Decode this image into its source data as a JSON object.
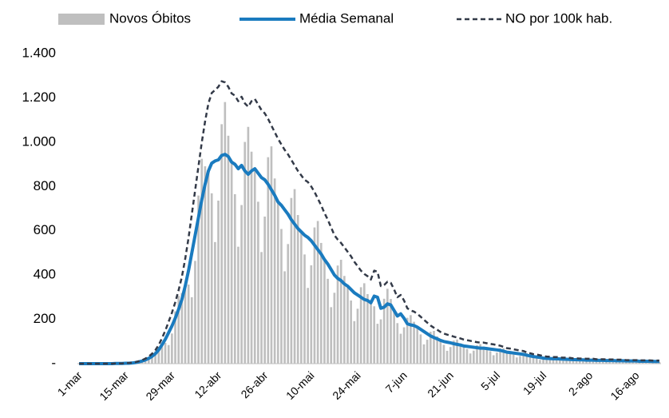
{
  "chart_data": {
    "type": "bar_line",
    "legend": "top",
    "categories": [
      "1-mar",
      null,
      null,
      null,
      null,
      null,
      null,
      null,
      null,
      null,
      null,
      null,
      null,
      null,
      "15-mar",
      null,
      null,
      null,
      null,
      null,
      null,
      null,
      null,
      null,
      null,
      null,
      null,
      null,
      "29-mar",
      null,
      null,
      null,
      null,
      null,
      null,
      null,
      null,
      null,
      null,
      null,
      null,
      null,
      "12-abr",
      null,
      null,
      null,
      null,
      null,
      null,
      null,
      null,
      null,
      null,
      null,
      null,
      null,
      "26-abr",
      null,
      null,
      null,
      null,
      null,
      null,
      null,
      null,
      null,
      null,
      null,
      null,
      null,
      "10-mai",
      null,
      null,
      null,
      null,
      null,
      null,
      null,
      null,
      null,
      null,
      null,
      null,
      null,
      "24-mai",
      null,
      null,
      null,
      null,
      null,
      null,
      null,
      null,
      null,
      null,
      null,
      null,
      null,
      "7-jun",
      null,
      null,
      null,
      null,
      null,
      null,
      null,
      null,
      null,
      null,
      null,
      null,
      null,
      "21-jun",
      null,
      null,
      null,
      null,
      null,
      null,
      null,
      null,
      null,
      null,
      null,
      null,
      null,
      "5-jul",
      null,
      null,
      null,
      null,
      null,
      null,
      null,
      null,
      null,
      null,
      null,
      null,
      null,
      "19-jul",
      null,
      null,
      null,
      null,
      null,
      null,
      null,
      null,
      null,
      null,
      null,
      null,
      null,
      "2-ago",
      null,
      null,
      null,
      null,
      null,
      null,
      null,
      null,
      null,
      null,
      null,
      null,
      null,
      "16-ago",
      null,
      null,
      null,
      null,
      null,
      null,
      null
    ],
    "series": [
      {
        "name": "Novos Óbitos",
        "kind": "bar",
        "color": "#bfbfbf",
        "values": [
          0,
          0,
          0,
          0,
          0,
          0,
          0,
          0,
          0,
          0,
          0,
          1,
          1,
          1,
          2,
          2,
          4,
          6,
          8,
          10,
          10,
          19,
          38,
          56,
          68,
          85,
          94,
          84,
          136,
          236,
          306,
          319,
          350,
          357,
          300,
          464,
          759,
          925,
          891,
          870,
          769,
          549,
          736,
          1081,
          1181,
          1029,
          910,
          765,
          528,
          716,
          1001,
          1069,
          957,
          880,
          731,
          504,
          664,
          932,
          981,
          836,
          730,
          608,
          417,
          540,
          748,
          788,
          671,
          595,
          493,
          342,
          444,
          615,
          644,
          545,
          470,
          383,
          255,
          320,
          443,
          469,
          396,
          350,
          285,
          192,
          248,
          345,
          363,
          314,
          275,
          259,
          180,
          200,
          293,
          338,
          292,
          240,
          183,
          135,
          164,
          207,
          219,
          189,
          165,
          132,
          87,
          108,
          144,
          148,
          123,
          105,
          85,
          58,
          75,
          104,
          109,
          92,
          80,
          66,
          46,
          59,
          83,
          88,
          77,
          68,
          56,
          38,
          50,
          69,
          70,
          57,
          50,
          41,
          28,
          35,
          48,
          48,
          39,
          32,
          26,
          17,
          20,
          28,
          29,
          24,
          22,
          18,
          12,
          16,
          22,
          23,
          20,
          17,
          14,
          10,
          13,
          18,
          19,
          17,
          15,
          12,
          8,
          11,
          15,
          16,
          14,
          13,
          10,
          7,
          10,
          13,
          14,
          12,
          11,
          9,
          6,
          8
        ]
      },
      {
        "name": "Média Semanal",
        "kind": "line",
        "color": "#1a7bbf",
        "values": [
          0,
          0,
          0,
          0,
          0,
          0,
          0,
          0,
          0,
          0,
          0,
          1,
          1,
          1,
          2,
          2,
          3,
          5,
          8,
          12,
          17,
          24,
          33,
          45,
          62,
          85,
          110,
          140,
          170,
          205,
          245,
          290,
          350,
          420,
          500,
          580,
          660,
          740,
          810,
          870,
          905,
          915,
          920,
          940,
          945,
          935,
          910,
          900,
          880,
          895,
          870,
          855,
          870,
          880,
          860,
          840,
          830,
          810,
          785,
          760,
          730,
          715,
          695,
          675,
          650,
          630,
          610,
          595,
          580,
          570,
          555,
          535,
          515,
          495,
          470,
          450,
          425,
          400,
          385,
          375,
          360,
          350,
          335,
          320,
          310,
          300,
          290,
          285,
          275,
          305,
          300,
          250,
          255,
          270,
          265,
          240,
          215,
          225,
          205,
          180,
          175,
          172,
          165,
          155,
          145,
          135,
          125,
          118,
          112,
          105,
          100,
          97,
          94,
          90,
          87,
          84,
          80,
          78,
          76,
          74,
          72,
          70,
          70,
          68,
          66,
          64,
          62,
          60,
          56,
          52,
          50,
          48,
          46,
          44,
          42,
          38,
          35,
          32,
          30,
          28,
          25,
          24,
          23,
          22,
          22,
          21,
          20,
          20,
          19,
          18,
          18,
          17,
          17,
          16,
          16,
          16,
          15,
          15,
          15,
          14,
          14,
          14,
          13,
          13,
          13,
          12,
          12,
          12,
          12,
          11,
          11,
          11,
          11,
          10,
          10,
          10
        ]
      },
      {
        "name": "NO por 100k hab.",
        "kind": "dashed",
        "color": "#333a48",
        "values": [
          0,
          0,
          0,
          0,
          0,
          0,
          0,
          0,
          0,
          0,
          0,
          1,
          1,
          1,
          3,
          3,
          4,
          7,
          11,
          16,
          23,
          32,
          45,
          61,
          84,
          115,
          149,
          189,
          230,
          277,
          331,
          392,
          473,
          567,
          675,
          783,
          891,
          999,
          1094,
          1175,
          1222,
          1235,
          1250,
          1275,
          1270,
          1250,
          1220,
          1210,
          1185,
          1205,
          1175,
          1160,
          1185,
          1195,
          1170,
          1145,
          1130,
          1105,
          1075,
          1045,
          1015,
          990,
          965,
          945,
          920,
          895,
          870,
          850,
          830,
          820,
          800,
          775,
          745,
          715,
          680,
          650,
          615,
          580,
          560,
          545,
          525,
          505,
          485,
          460,
          440,
          420,
          405,
          395,
          380,
          420,
          415,
          350,
          355,
          370,
          365,
          335,
          300,
          310,
          285,
          250,
          240,
          235,
          225,
          212,
          198,
          185,
          172,
          162,
          153,
          143,
          136,
          131,
          127,
          122,
          118,
          114,
          109,
          106,
          103,
          100,
          97,
          95,
          95,
          92,
          89,
          87,
          84,
          81,
          76,
          70,
          68,
          65,
          62,
          59,
          57,
          51,
          47,
          43,
          41,
          38,
          34,
          32,
          31,
          30,
          30,
          28,
          27,
          27,
          26,
          24,
          24,
          23,
          23,
          22,
          22,
          22,
          20,
          20,
          20,
          19,
          19,
          19,
          18,
          18,
          18,
          16,
          16,
          16,
          16,
          15,
          15,
          15,
          15,
          14,
          14,
          14
        ]
      }
    ],
    "ylim": [
      0,
      1400
    ],
    "yticks": [
      {
        "value": 0,
        "label": "-"
      },
      200,
      400,
      600,
      800,
      {
        "value": 1000,
        "label": "1.000"
      },
      {
        "value": 1200,
        "label": "1.200"
      },
      {
        "value": 1400,
        "label": "1.400"
      }
    ],
    "grid": false
  }
}
